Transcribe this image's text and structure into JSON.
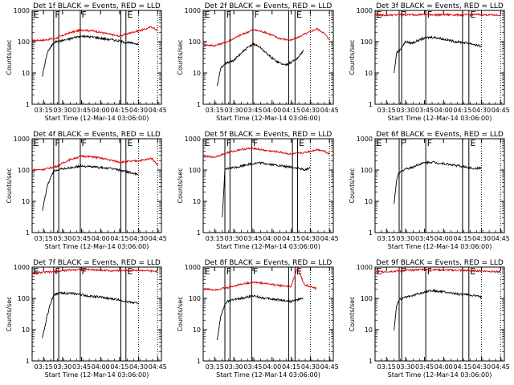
{
  "chart_data": {
    "type": "line",
    "yscale": "log",
    "ylim": [
      1,
      1000
    ],
    "xlim": [
      "03:06",
      "04:48"
    ],
    "yticks": [
      "1",
      "10",
      "100",
      "1000"
    ],
    "xticks": [
      "03:15",
      "03:30",
      "03:45",
      "04:00",
      "04:15",
      "04:30",
      "04:45"
    ],
    "ylabel": "Counts/sec",
    "xlabel": "Start Time (12-Mar-14 03:06:00)",
    "series_colors": {
      "events": "#000000",
      "lld": "#dd0000"
    },
    "panels": [
      {
        "title": "Det 1f BLACK = Events, RED = LLD",
        "solid_lines": [
          "03:23",
          "03:27",
          "03:44",
          "04:16",
          "04:20"
        ],
        "dotted_lines": [
          "04:30",
          "04:45"
        ],
        "letters": [
          {
            "text": "E",
            "x": "03:07"
          },
          {
            "text": "F",
            "x": "03:24"
          },
          {
            "text": "F",
            "x": "03:45"
          },
          {
            "text": "E",
            "x": "04:21"
          }
        ],
        "events": {
          "t": [
            "03:14",
            "03:18",
            "03:19",
            "03:20",
            "03:23",
            "03:25",
            "03:30",
            "03:35",
            "03:40",
            "03:45",
            "03:50",
            "03:55",
            "04:00",
            "04:05",
            "04:10",
            "04:15",
            "04:20",
            "04:25",
            "04:30"
          ],
          "v": [
            8,
            45,
            55,
            60,
            95,
            100,
            110,
            120,
            140,
            150,
            145,
            140,
            130,
            120,
            115,
            105,
            95,
            90,
            85
          ]
        },
        "lld": {
          "t": [
            "03:06",
            "03:15",
            "03:25",
            "03:35",
            "03:45",
            "03:55",
            "04:05",
            "04:15",
            "04:25",
            "04:35",
            "04:40",
            "04:45"
          ],
          "v": [
            110,
            112,
            130,
            190,
            240,
            220,
            180,
            150,
            200,
            250,
            300,
            230
          ]
        }
      },
      {
        "title": "Det 2f BLACK = Events, RED = LLD",
        "solid_lines": [
          "03:23",
          "03:27",
          "03:45",
          "04:13",
          "04:18"
        ],
        "dotted_lines": [
          "04:30",
          "04:45"
        ],
        "letters": [
          {
            "text": "E",
            "x": "03:07"
          },
          {
            "text": "F",
            "x": "03:24"
          },
          {
            "text": "F",
            "x": "03:46"
          },
          {
            "text": "E",
            "x": "04:19"
          }
        ],
        "events": {
          "t": [
            "03:17",
            "03:20",
            "03:23",
            "03:30",
            "03:35",
            "03:40",
            "03:45",
            "03:50",
            "03:55",
            "04:00",
            "04:05",
            "04:10",
            "04:15",
            "04:20",
            "04:25"
          ],
          "v": [
            4,
            15,
            20,
            25,
            40,
            60,
            85,
            70,
            45,
            30,
            22,
            18,
            22,
            30,
            55
          ]
        },
        "lld": {
          "t": [
            "03:06",
            "03:15",
            "03:25",
            "03:35",
            "03:45",
            "03:55",
            "04:05",
            "04:15",
            "04:25",
            "04:35",
            "04:40",
            "04:45"
          ],
          "v": [
            80,
            75,
            100,
            160,
            240,
            200,
            130,
            110,
            170,
            260,
            200,
            120
          ]
        }
      },
      {
        "title": "Det 3f BLACK = Events, RED = LLD",
        "solid_lines": [
          "03:25",
          "03:27",
          "03:46",
          "04:15",
          "04:20"
        ],
        "dotted_lines": [
          "04:30",
          "04:45"
        ],
        "letters": [
          {
            "text": "E",
            "x": "03:07"
          },
          {
            "text": "F",
            "x": "03:26"
          },
          {
            "text": "F",
            "x": "03:47"
          },
          {
            "text": "E",
            "x": "04:21"
          }
        ],
        "events": {
          "t": [
            "03:21",
            "03:23",
            "03:25",
            "03:30",
            "03:35",
            "03:40",
            "03:45",
            "03:50",
            "03:55",
            "04:00",
            "04:05",
            "04:10",
            "04:15",
            "04:20",
            "04:25",
            "04:30"
          ],
          "v": [
            10,
            45,
            50,
            100,
            90,
            110,
            130,
            140,
            135,
            120,
            110,
            100,
            95,
            90,
            80,
            70
          ]
        },
        "lld": {
          "t": [
            "03:06",
            "03:15",
            "03:25",
            "03:35",
            "03:45",
            "03:55",
            "04:05",
            "04:15",
            "04:25",
            "04:35",
            "04:45"
          ],
          "v": [
            700,
            710,
            720,
            730,
            740,
            720,
            730,
            710,
            740,
            720,
            700
          ]
        }
      },
      {
        "title": "Det 4f BLACK = Events, RED = LLD",
        "solid_lines": [
          "03:23",
          "03:27",
          "03:44",
          "04:16",
          "04:20"
        ],
        "dotted_lines": [
          "04:30",
          "04:45"
        ],
        "letters": [
          {
            "text": "E",
            "x": "03:07"
          },
          {
            "text": "F",
            "x": "03:24"
          },
          {
            "text": "F",
            "x": "03:45"
          },
          {
            "text": "E",
            "x": "04:21"
          }
        ],
        "events": {
          "t": [
            "03:14",
            "03:18",
            "03:19",
            "03:20",
            "03:23",
            "03:25",
            "03:30",
            "03:35",
            "03:40",
            "03:45",
            "03:50",
            "03:55",
            "04:00",
            "04:05",
            "04:10",
            "04:15",
            "04:20",
            "04:25",
            "04:30"
          ],
          "v": [
            5,
            30,
            40,
            50,
            90,
            100,
            110,
            115,
            125,
            135,
            130,
            125,
            120,
            115,
            110,
            100,
            90,
            80,
            70
          ]
        },
        "lld": {
          "t": [
            "03:06",
            "03:15",
            "03:25",
            "03:35",
            "03:45",
            "03:55",
            "04:05",
            "04:15",
            "04:25",
            "04:35",
            "04:40",
            "04:45"
          ],
          "v": [
            100,
            105,
            130,
            210,
            280,
            260,
            220,
            180,
            190,
            210,
            240,
            150
          ]
        }
      },
      {
        "title": "Det 5f BLACK = Events, RED = LLD",
        "solid_lines": [
          "03:23",
          "03:27",
          "03:44",
          "04:16",
          "04:20"
        ],
        "dotted_lines": [
          "04:30",
          "04:45"
        ],
        "letters": [
          {
            "text": "E",
            "x": "03:07"
          },
          {
            "text": "F",
            "x": "03:24"
          },
          {
            "text": "F",
            "x": "03:45"
          },
          {
            "text": "E",
            "x": "04:21"
          }
        ],
        "events": {
          "t": [
            "03:21",
            "03:23",
            "03:25",
            "03:30",
            "03:35",
            "03:40",
            "03:45",
            "03:50",
            "03:55",
            "04:00",
            "04:05",
            "04:10",
            "04:15",
            "04:20",
            "04:25",
            "04:30"
          ],
          "v": [
            3,
            100,
            110,
            120,
            130,
            150,
            160,
            170,
            160,
            150,
            140,
            130,
            125,
            115,
            100,
            120
          ]
        },
        "lld": {
          "t": [
            "03:06",
            "03:15",
            "03:25",
            "03:35",
            "03:45",
            "03:55",
            "04:05",
            "04:15",
            "04:25",
            "04:35",
            "04:40",
            "04:45"
          ],
          "v": [
            270,
            260,
            360,
            450,
            500,
            420,
            380,
            320,
            360,
            450,
            420,
            330
          ]
        }
      },
      {
        "title": "Det 6f BLACK = Events, RED = LLD",
        "solid_lines": [
          "03:25",
          "03:27",
          "03:46",
          "04:15",
          "04:20"
        ],
        "dotted_lines": [
          "04:30",
          "04:45"
        ],
        "letters": [
          {
            "text": "E",
            "x": "03:07"
          },
          {
            "text": "F",
            "x": "03:26"
          },
          {
            "text": "F",
            "x": "03:47"
          },
          {
            "text": "E",
            "x": "04:21"
          }
        ],
        "events": {
          "t": [
            "03:21",
            "03:23",
            "03:25",
            "03:30",
            "03:35",
            "03:40",
            "03:45",
            "03:50",
            "03:55",
            "04:00",
            "04:05",
            "04:10",
            "04:15",
            "04:20",
            "04:25",
            "04:30"
          ],
          "v": [
            8,
            50,
            80,
            110,
            120,
            150,
            170,
            180,
            170,
            160,
            150,
            140,
            130,
            120,
            110,
            120
          ]
        },
        "lld": {
          "t": [],
          "v": []
        }
      },
      {
        "title": "Det 7f BLACK = Events, RED = LLD",
        "solid_lines": [
          "03:23",
          "03:27",
          "03:44",
          "04:16",
          "04:20"
        ],
        "dotted_lines": [
          "04:30",
          "04:45"
        ],
        "letters": [
          {
            "text": "E",
            "x": "03:07"
          },
          {
            "text": "F",
            "x": "03:24"
          },
          {
            "text": "F",
            "x": "03:45"
          },
          {
            "text": "E",
            "x": "04:21"
          }
        ],
        "events": {
          "t": [
            "03:14",
            "03:18",
            "03:19",
            "03:20",
            "03:23",
            "03:25",
            "03:30",
            "03:35",
            "03:40",
            "03:45",
            "03:50",
            "03:55",
            "04:00",
            "04:05",
            "04:10",
            "04:15",
            "04:20",
            "04:25",
            "04:30"
          ],
          "v": [
            5,
            30,
            40,
            60,
            130,
            140,
            150,
            145,
            140,
            130,
            120,
            115,
            110,
            100,
            95,
            90,
            80,
            75,
            70
          ]
        },
        "lld": {
          "t": [
            "03:06",
            "03:15",
            "03:25",
            "03:35",
            "03:45",
            "03:55",
            "04:05",
            "04:15",
            "04:25",
            "04:35",
            "04:45"
          ],
          "v": [
            650,
            680,
            720,
            800,
            850,
            820,
            780,
            760,
            800,
            770,
            720
          ]
        }
      },
      {
        "title": "Det 8f BLACK = Events, RED = LLD",
        "solid_lines": [
          "03:23",
          "03:27",
          "03:44",
          "04:13",
          "04:18"
        ],
        "dotted_lines": [
          "04:30",
          "04:45"
        ],
        "letters": [
          {
            "text": "E",
            "x": "03:07"
          },
          {
            "text": "F",
            "x": "03:24"
          },
          {
            "text": "F",
            "x": "03:45"
          },
          {
            "text": "E",
            "x": "04:19"
          }
        ],
        "events": {
          "t": [
            "03:17",
            "03:20",
            "03:23",
            "03:25",
            "03:30",
            "03:35",
            "03:40",
            "03:45",
            "03:50",
            "03:55",
            "04:00",
            "04:05",
            "04:10",
            "04:15",
            "04:20",
            "04:25"
          ],
          "v": [
            5,
            30,
            60,
            80,
            90,
            100,
            110,
            120,
            110,
            100,
            95,
            90,
            85,
            80,
            90,
            100
          ]
        },
        "lld": {
          "t": [
            "03:06",
            "03:15",
            "03:25",
            "03:35",
            "03:45",
            "03:55",
            "04:05",
            "04:15",
            "04:20",
            "04:25",
            "04:30",
            "04:35"
          ],
          "v": [
            200,
            190,
            220,
            280,
            330,
            300,
            260,
            240,
            1000,
            280,
            240,
            200
          ]
        }
      },
      {
        "title": "Det 9f BLACK = Events, RED = LLD",
        "solid_lines": [
          "03:25",
          "03:27",
          "03:46",
          "04:15",
          "04:20"
        ],
        "dotted_lines": [
          "04:30",
          "04:45"
        ],
        "letters": [
          {
            "text": "E",
            "x": "03:07"
          },
          {
            "text": "F",
            "x": "03:26"
          },
          {
            "text": "F",
            "x": "03:47"
          },
          {
            "text": "E",
            "x": "04:21"
          }
        ],
        "events": {
          "t": [
            "03:21",
            "03:23",
            "03:25",
            "03:30",
            "03:35",
            "03:40",
            "03:45",
            "03:50",
            "03:55",
            "04:00",
            "04:05",
            "04:10",
            "04:15",
            "04:20",
            "04:25",
            "04:30"
          ],
          "v": [
            10,
            60,
            90,
            110,
            120,
            140,
            160,
            180,
            170,
            160,
            150,
            140,
            135,
            130,
            120,
            110
          ]
        },
        "lld": {
          "t": [
            "03:06",
            "03:15",
            "03:25",
            "03:35",
            "03:45",
            "03:55",
            "04:05",
            "04:15",
            "04:25",
            "04:35",
            "04:45"
          ],
          "v": [
            700,
            720,
            750,
            800,
            850,
            820,
            800,
            780,
            760,
            740,
            700
          ]
        }
      }
    ]
  }
}
